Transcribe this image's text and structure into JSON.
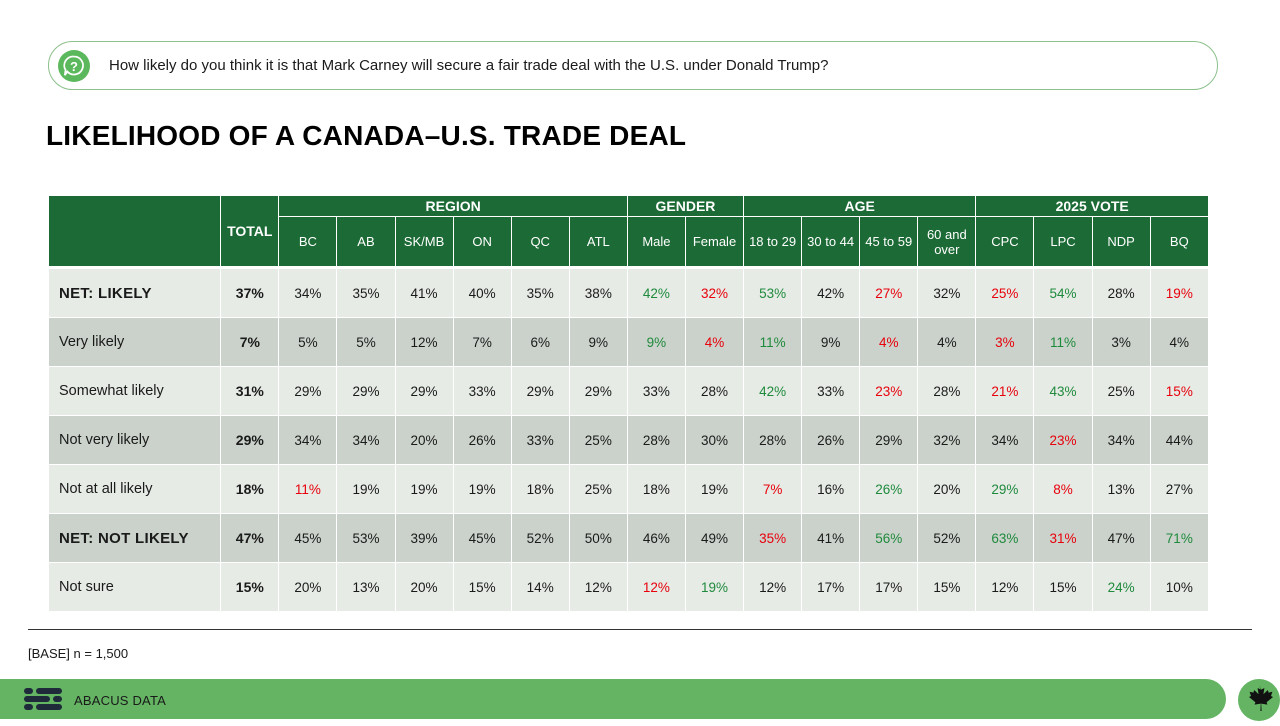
{
  "question": {
    "icon": "question-bubble-icon",
    "text": "How likely do you think it is that Mark Carney will secure a fair trade deal with the U.S. under Donald Trump?"
  },
  "title": "LIKELIHOOD OF A CANADA–U.S. TRADE DEAL",
  "colors": {
    "header_green": "#1c6a35",
    "positive": "#1f8a3c",
    "negative": "#e8000b",
    "footer_green": "#64b463"
  },
  "table": {
    "total_label": "TOTAL",
    "groups": [
      {
        "label": "REGION",
        "columns": [
          "BC",
          "AB",
          "SK/MB",
          "ON",
          "QC",
          "ATL"
        ]
      },
      {
        "label": "GENDER",
        "columns": [
          "Male",
          "Female"
        ]
      },
      {
        "label": "AGE",
        "columns": [
          "18 to 29",
          "30 to 44",
          "45 to 59",
          "60 and over"
        ]
      },
      {
        "label": "2025 VOTE",
        "columns": [
          "CPC",
          "LPC",
          "NDP",
          "BQ"
        ]
      }
    ],
    "rows": [
      {
        "label": "NET: LIKELY",
        "net": true,
        "total": "37%",
        "cells": [
          {
            "v": "34%",
            "s": ""
          },
          {
            "v": "35%",
            "s": ""
          },
          {
            "v": "41%",
            "s": ""
          },
          {
            "v": "40%",
            "s": ""
          },
          {
            "v": "35%",
            "s": ""
          },
          {
            "v": "38%",
            "s": ""
          },
          {
            "v": "42%",
            "s": "pos"
          },
          {
            "v": "32%",
            "s": "neg"
          },
          {
            "v": "53%",
            "s": "pos"
          },
          {
            "v": "42%",
            "s": ""
          },
          {
            "v": "27%",
            "s": "neg"
          },
          {
            "v": "32%",
            "s": ""
          },
          {
            "v": "25%",
            "s": "neg"
          },
          {
            "v": "54%",
            "s": "pos"
          },
          {
            "v": "28%",
            "s": ""
          },
          {
            "v": "19%",
            "s": "neg"
          }
        ]
      },
      {
        "label": "Very likely",
        "net": false,
        "total": "7%",
        "cells": [
          {
            "v": "5%",
            "s": ""
          },
          {
            "v": "5%",
            "s": ""
          },
          {
            "v": "12%",
            "s": ""
          },
          {
            "v": "7%",
            "s": ""
          },
          {
            "v": "6%",
            "s": ""
          },
          {
            "v": "9%",
            "s": ""
          },
          {
            "v": "9%",
            "s": "pos"
          },
          {
            "v": "4%",
            "s": "neg"
          },
          {
            "v": "11%",
            "s": "pos"
          },
          {
            "v": "9%",
            "s": ""
          },
          {
            "v": "4%",
            "s": "neg"
          },
          {
            "v": "4%",
            "s": ""
          },
          {
            "v": "3%",
            "s": "neg"
          },
          {
            "v": "11%",
            "s": "pos"
          },
          {
            "v": "3%",
            "s": ""
          },
          {
            "v": "4%",
            "s": ""
          }
        ]
      },
      {
        "label": "Somewhat likely",
        "net": false,
        "total": "31%",
        "cells": [
          {
            "v": "29%",
            "s": ""
          },
          {
            "v": "29%",
            "s": ""
          },
          {
            "v": "29%",
            "s": ""
          },
          {
            "v": "33%",
            "s": ""
          },
          {
            "v": "29%",
            "s": ""
          },
          {
            "v": "29%",
            "s": ""
          },
          {
            "v": "33%",
            "s": ""
          },
          {
            "v": "28%",
            "s": ""
          },
          {
            "v": "42%",
            "s": "pos"
          },
          {
            "v": "33%",
            "s": ""
          },
          {
            "v": "23%",
            "s": "neg"
          },
          {
            "v": "28%",
            "s": ""
          },
          {
            "v": "21%",
            "s": "neg"
          },
          {
            "v": "43%",
            "s": "pos"
          },
          {
            "v": "25%",
            "s": ""
          },
          {
            "v": "15%",
            "s": "neg"
          }
        ]
      },
      {
        "label": "Not very likely",
        "net": false,
        "total": "29%",
        "cells": [
          {
            "v": "34%",
            "s": ""
          },
          {
            "v": "34%",
            "s": ""
          },
          {
            "v": "20%",
            "s": ""
          },
          {
            "v": "26%",
            "s": ""
          },
          {
            "v": "33%",
            "s": ""
          },
          {
            "v": "25%",
            "s": ""
          },
          {
            "v": "28%",
            "s": ""
          },
          {
            "v": "30%",
            "s": ""
          },
          {
            "v": "28%",
            "s": ""
          },
          {
            "v": "26%",
            "s": ""
          },
          {
            "v": "29%",
            "s": ""
          },
          {
            "v": "32%",
            "s": ""
          },
          {
            "v": "34%",
            "s": ""
          },
          {
            "v": "23%",
            "s": "neg"
          },
          {
            "v": "34%",
            "s": ""
          },
          {
            "v": "44%",
            "s": ""
          }
        ]
      },
      {
        "label": "Not at all likely",
        "net": false,
        "total": "18%",
        "cells": [
          {
            "v": "11%",
            "s": "neg"
          },
          {
            "v": "19%",
            "s": ""
          },
          {
            "v": "19%",
            "s": ""
          },
          {
            "v": "19%",
            "s": ""
          },
          {
            "v": "18%",
            "s": ""
          },
          {
            "v": "25%",
            "s": ""
          },
          {
            "v": "18%",
            "s": ""
          },
          {
            "v": "19%",
            "s": ""
          },
          {
            "v": "7%",
            "s": "neg"
          },
          {
            "v": "16%",
            "s": ""
          },
          {
            "v": "26%",
            "s": "pos"
          },
          {
            "v": "20%",
            "s": ""
          },
          {
            "v": "29%",
            "s": "pos"
          },
          {
            "v": "8%",
            "s": "neg"
          },
          {
            "v": "13%",
            "s": ""
          },
          {
            "v": "27%",
            "s": ""
          }
        ]
      },
      {
        "label": "NET: NOT LIKELY",
        "net": true,
        "total": "47%",
        "cells": [
          {
            "v": "45%",
            "s": ""
          },
          {
            "v": "53%",
            "s": ""
          },
          {
            "v": "39%",
            "s": ""
          },
          {
            "v": "45%",
            "s": ""
          },
          {
            "v": "52%",
            "s": ""
          },
          {
            "v": "50%",
            "s": ""
          },
          {
            "v": "46%",
            "s": ""
          },
          {
            "v": "49%",
            "s": ""
          },
          {
            "v": "35%",
            "s": "neg"
          },
          {
            "v": "41%",
            "s": ""
          },
          {
            "v": "56%",
            "s": "pos"
          },
          {
            "v": "52%",
            "s": ""
          },
          {
            "v": "63%",
            "s": "pos"
          },
          {
            "v": "31%",
            "s": "neg"
          },
          {
            "v": "47%",
            "s": ""
          },
          {
            "v": "71%",
            "s": "pos"
          }
        ]
      },
      {
        "label": "Not sure",
        "net": false,
        "total": "15%",
        "cells": [
          {
            "v": "20%",
            "s": ""
          },
          {
            "v": "13%",
            "s": ""
          },
          {
            "v": "20%",
            "s": ""
          },
          {
            "v": "15%",
            "s": ""
          },
          {
            "v": "14%",
            "s": ""
          },
          {
            "v": "12%",
            "s": ""
          },
          {
            "v": "12%",
            "s": "neg"
          },
          {
            "v": "19%",
            "s": "pos"
          },
          {
            "v": "12%",
            "s": ""
          },
          {
            "v": "17%",
            "s": ""
          },
          {
            "v": "17%",
            "s": ""
          },
          {
            "v": "15%",
            "s": ""
          },
          {
            "v": "12%",
            "s": ""
          },
          {
            "v": "15%",
            "s": ""
          },
          {
            "v": "24%",
            "s": "pos"
          },
          {
            "v": "10%",
            "s": ""
          }
        ]
      }
    ]
  },
  "base_note": "[BASE] n = 1,500",
  "footer": {
    "logo_icon": "abacus-logo-icon",
    "brand": "ABACUS DATA",
    "badge_icon": "maple-leaf-icon"
  }
}
